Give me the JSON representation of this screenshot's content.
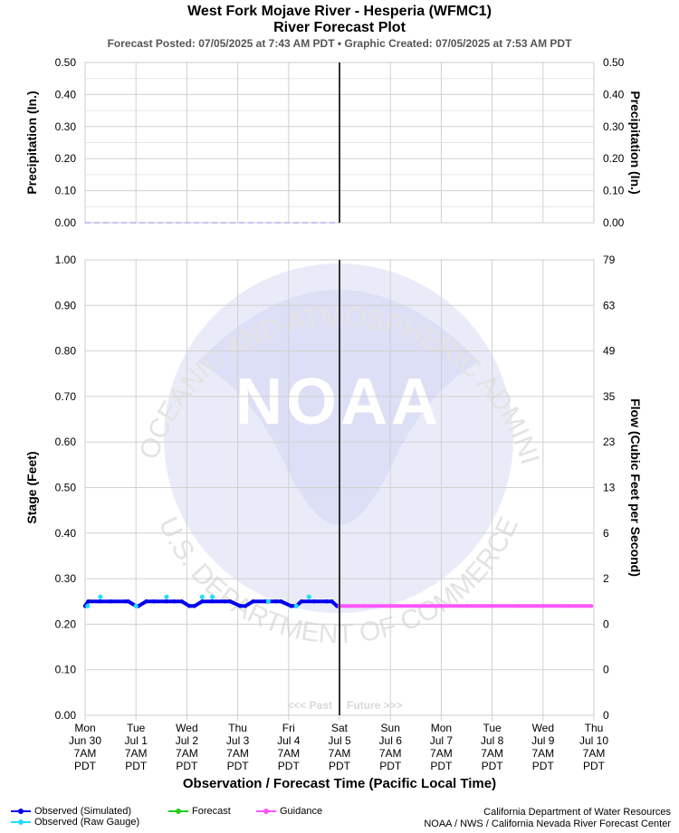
{
  "header": {
    "title_line1": "West Fork Mojave River - Hesperia (WFMC1)",
    "title_line2": "River Forecast Plot",
    "subtitle": "Forecast Posted: 07/05/2025 at 7:43 AM PDT  •  Graphic Created: 07/05/2025 at 7:53 AM PDT"
  },
  "chart_data": [
    {
      "type": "line",
      "panel": "precipitation",
      "ylabel_left": "Precipitation (In.)",
      "ylabel_right": "Precipitation (In.)",
      "ylim": [
        0,
        0.5
      ],
      "yticks": [
        "0.00",
        "0.10",
        "0.20",
        "0.30",
        "0.40",
        "0.50"
      ],
      "ytick_values": [
        0,
        0.1,
        0.2,
        0.3,
        0.4,
        0.5
      ],
      "grid": true,
      "series": [
        {
          "style": "dashed",
          "color": "#b0b0f0",
          "x": [
            0,
            5
          ],
          "values": [
            0,
            0
          ]
        }
      ]
    },
    {
      "type": "line",
      "panel": "stage",
      "ylabel_left": "Stage (Feet)",
      "ylabel_right": "Flow (Cubic Feet per Second)",
      "ylim": [
        0,
        1.0
      ],
      "yticks": [
        "0.00",
        "0.10",
        "0.20",
        "0.30",
        "0.40",
        "0.50",
        "0.60",
        "0.70",
        "0.80",
        "0.90",
        "1.00"
      ],
      "ytick_values": [
        0,
        0.1,
        0.2,
        0.3,
        0.4,
        0.5,
        0.6,
        0.7,
        0.8,
        0.9,
        1.0
      ],
      "right_ticks": [
        "0",
        "0",
        "0",
        "2",
        "6",
        "13",
        "23",
        "35",
        "49",
        "63",
        "79"
      ],
      "grid": true,
      "xlabel": "Observation / Forecast Time (Pacific Local Time)",
      "x_unit": "days since Mon Jun 30 7AM PDT",
      "xlim": [
        0,
        10
      ],
      "xticks": [
        {
          "day": "Mon",
          "date": "Jun 30",
          "time": "7AM",
          "tz": "PDT"
        },
        {
          "day": "Tue",
          "date": "Jul 1",
          "time": "7AM",
          "tz": "PDT"
        },
        {
          "day": "Wed",
          "date": "Jul 2",
          "time": "7AM",
          "tz": "PDT"
        },
        {
          "day": "Thu",
          "date": "Jul 3",
          "time": "7AM",
          "tz": "PDT"
        },
        {
          "day": "Fri",
          "date": "Jul 4",
          "time": "7AM",
          "tz": "PDT"
        },
        {
          "day": "Sat",
          "date": "Jul 5",
          "time": "7AM",
          "tz": "PDT"
        },
        {
          "day": "Sun",
          "date": "Jul 6",
          "time": "7AM",
          "tz": "PDT"
        },
        {
          "day": "Mon",
          "date": "Jul 7",
          "time": "7AM",
          "tz": "PDT"
        },
        {
          "day": "Tue",
          "date": "Jul 8",
          "time": "7AM",
          "tz": "PDT"
        },
        {
          "day": "Wed",
          "date": "Jul 9",
          "time": "7AM",
          "tz": "PDT"
        },
        {
          "day": "Thu",
          "date": "Jul 10",
          "time": "7AM",
          "tz": "PDT"
        }
      ],
      "now_x": 5,
      "past_label": "<<< Past",
      "future_label": "Future >>>",
      "series": [
        {
          "name": "Observed (Simulated)",
          "color": "#0000ee",
          "x": [
            0.0,
            0.06,
            0.3,
            0.5,
            0.8,
            0.85,
            1.0,
            1.05,
            1.2,
            1.35,
            1.6,
            1.75,
            1.9,
            2.05,
            2.15,
            2.3,
            2.5,
            2.75,
            2.85,
            3.05,
            3.15,
            3.3,
            3.55,
            3.75,
            3.85,
            4.05,
            4.15,
            4.25,
            4.5,
            4.75,
            4.85,
            4.95,
            5.0
          ],
          "values": [
            0.24,
            0.25,
            0.25,
            0.25,
            0.25,
            0.25,
            0.24,
            0.24,
            0.25,
            0.25,
            0.25,
            0.25,
            0.25,
            0.24,
            0.24,
            0.25,
            0.25,
            0.25,
            0.25,
            0.24,
            0.24,
            0.25,
            0.25,
            0.25,
            0.25,
            0.24,
            0.24,
            0.25,
            0.25,
            0.25,
            0.25,
            0.24,
            0.24
          ]
        },
        {
          "name": "Observed (Raw Gauge)",
          "color": "#22ddff",
          "x": [
            0.05,
            0.3,
            1.0,
            1.6,
            2.3,
            2.5,
            3.6,
            4.15,
            4.4
          ],
          "values": [
            0.24,
            0.26,
            0.24,
            0.26,
            0.26,
            0.26,
            0.25,
            0.24,
            0.26
          ]
        },
        {
          "name": "Forecast",
          "color": "#22cc22",
          "x": [],
          "values": []
        },
        {
          "name": "Guidance",
          "color": "#ff55ff",
          "x": [
            5.0,
            5.5,
            6.0,
            6.5,
            7.0,
            7.5,
            8.0,
            8.5,
            9.0,
            9.5,
            9.95
          ],
          "values": [
            0.24,
            0.24,
            0.24,
            0.24,
            0.24,
            0.24,
            0.24,
            0.24,
            0.24,
            0.24,
            0.24
          ]
        }
      ]
    }
  ],
  "watermark": {
    "logo_text": "NOAA",
    "ring_text": "NATIONAL OCEANIC AND ATMOSPHERIC ADMINISTRATION",
    "ring_text_bottom": "U.S. DEPARTMENT OF COMMERCE"
  },
  "legend": {
    "items": [
      {
        "label": "Observed (Simulated)",
        "color": "#0000ee"
      },
      {
        "label": "Observed (Raw Gauge)",
        "color": "#22ddff"
      },
      {
        "label": "Forecast",
        "color": "#22cc22"
      },
      {
        "label": "Guidance",
        "color": "#ff55ff"
      }
    ]
  },
  "credits": {
    "line1": "California Department of Water Resources",
    "line2": "NOAA / NWS / California Nevada River Forecast Center"
  }
}
